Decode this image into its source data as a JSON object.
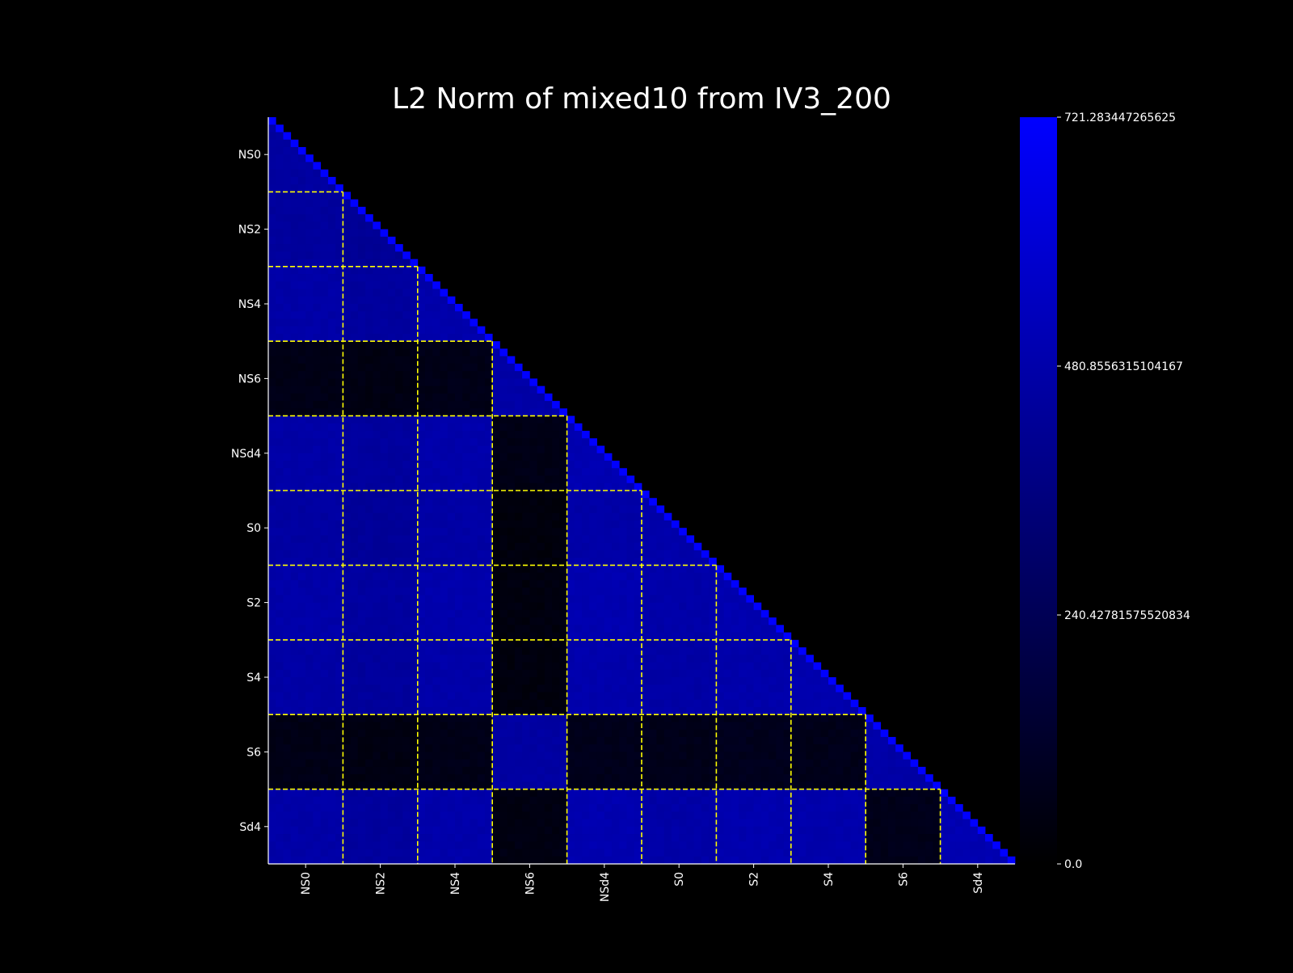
{
  "chart_data": {
    "type": "heatmap",
    "title": "L2 Norm of mixed10 from IV3_200",
    "xlabel": "",
    "ylabel": "",
    "mask": "upper-triangle",
    "groups": [
      "NS0",
      "NS2",
      "NS4",
      "NS6",
      "NSd4",
      "S0",
      "S2",
      "S4",
      "S6",
      "Sd4"
    ],
    "cells_per_group": 10,
    "x_tick_labels": [
      "NS0",
      "NS2",
      "NS4",
      "NS6",
      "NSd4",
      "S0",
      "S2",
      "S4",
      "S6",
      "Sd4"
    ],
    "y_tick_labels": [
      "NS0",
      "NS2",
      "NS4",
      "NS6",
      "NSd4",
      "S0",
      "S2",
      "S4",
      "S6",
      "Sd4"
    ],
    "group_block_values": [
      [
        450,
        0,
        0,
        0,
        0,
        0,
        0,
        0,
        0,
        0
      ],
      [
        440,
        420,
        0,
        0,
        0,
        0,
        0,
        0,
        0,
        0
      ],
      [
        470,
        445,
        480,
        0,
        0,
        0,
        0,
        0,
        0,
        0
      ],
      [
        60,
        50,
        65,
        470,
        0,
        0,
        0,
        0,
        0,
        0
      ],
      [
        470,
        445,
        480,
        60,
        500,
        0,
        0,
        0,
        0,
        0
      ],
      [
        455,
        430,
        465,
        35,
        470,
        480,
        0,
        0,
        0,
        0
      ],
      [
        475,
        450,
        485,
        40,
        495,
        475,
        495,
        0,
        0,
        0
      ],
      [
        465,
        440,
        475,
        40,
        485,
        465,
        480,
        490,
        0,
        0
      ],
      [
        60,
        50,
        65,
        455,
        75,
        70,
        80,
        70,
        470,
        0
      ],
      [
        470,
        445,
        480,
        50,
        495,
        470,
        490,
        485,
        70,
        500
      ]
    ],
    "diagonal_value": 721.283447265625,
    "boundary_line_color": "#ffff00",
    "colormap": [
      "#000000",
      "#0000ff"
    ],
    "colorbar": {
      "min": 0.0,
      "max": 721.283447265625,
      "tick_values": [
        0.0,
        240.42781575520834,
        480.8556315104167,
        721.283447265625
      ],
      "tick_labels": [
        "0.0",
        "240.42781575520834",
        "480.8556315104167",
        "721.283447265625"
      ]
    },
    "grid": false,
    "legend": "colorbar right"
  }
}
